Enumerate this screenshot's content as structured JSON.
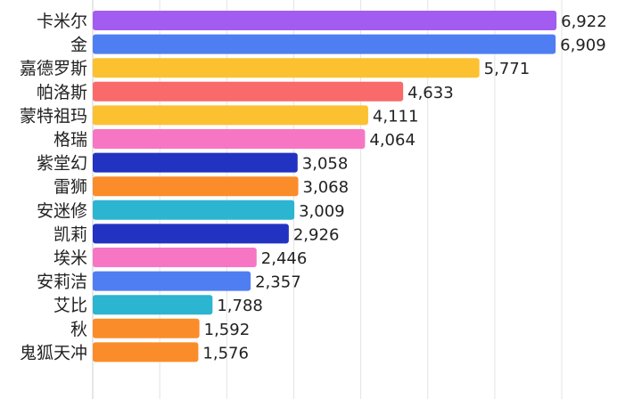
{
  "chart_data": {
    "type": "bar",
    "orientation": "horizontal",
    "title": "",
    "xlabel": "",
    "ylabel": "",
    "xlim": [
      0,
      7000
    ],
    "grid": true,
    "legend": "none",
    "categories": [
      "卡米尔",
      "金",
      "嘉德罗斯",
      "帕洛斯",
      "蒙特祖玛",
      "格瑞",
      "紫堂幻",
      "雷狮",
      "安迷修",
      "凯莉",
      "埃米",
      "安莉洁",
      "艾比",
      "秋",
      "鬼狐天冲"
    ],
    "values": [
      6922,
      6909,
      5771,
      4633,
      4111,
      4064,
      3058,
      3068,
      3009,
      2926,
      2446,
      2357,
      1788,
      1592,
      1576
    ],
    "value_labels": [
      "6,922",
      "6,909",
      "5,771",
      "4,633",
      "4,111",
      "4,064",
      "3,058",
      "3,068",
      "3,009",
      "2,926",
      "2,446",
      "2,357",
      "1,788",
      "1,592",
      "1,576"
    ],
    "colors": [
      "#a35cf0",
      "#4f7ef2",
      "#fcc131",
      "#f96a6a",
      "#fcc131",
      "#f776c4",
      "#2233c2",
      "#fb8c2a",
      "#2bb5d1",
      "#2233c2",
      "#f776c4",
      "#4f7ef2",
      "#2bb5d1",
      "#fb8c2a",
      "#fb8c2a"
    ]
  }
}
